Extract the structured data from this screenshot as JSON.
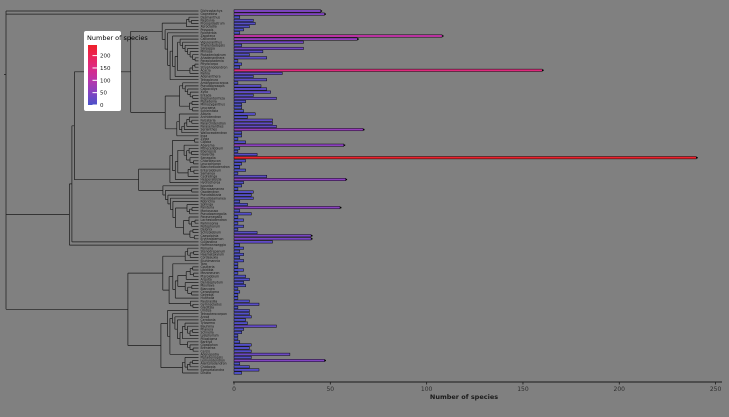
{
  "canvas": {
    "background": "#808080"
  },
  "chart_data": {
    "type": "bar",
    "orientation": "horizontal",
    "title": "",
    "xlabel": "Number of species",
    "legend_title": "Number of species",
    "legend_ticks": [
      200,
      150,
      100,
      50,
      0
    ],
    "x_ticks": [
      0,
      50,
      100,
      150,
      200,
      250
    ],
    "xlim": [
      0,
      250
    ],
    "grid": false,
    "tree": {
      "kind": "phylogenetic-cladogram",
      "tip_count": 117
    },
    "colors": {
      "background": "#808080",
      "bar_stroke": "#000000",
      "tree_line": "#1b1b1b",
      "axis_line": "#1a1a1a",
      "axis_text": "#2e2e2e",
      "label_text": "#141414",
      "legend_bg": "#ffffff",
      "value_color_stops": [
        [
          0,
          "#4a52c9"
        ],
        [
          50,
          "#8443c1"
        ],
        [
          100,
          "#b935ab"
        ],
        [
          150,
          "#dc2a86"
        ],
        [
          200,
          "#ec2355"
        ],
        [
          243,
          "#ee2129"
        ]
      ]
    },
    "categories": [
      "Dichrostachys",
      "Gagnebina",
      "Desmanthus",
      "Neptunia",
      "Prosopidastrum",
      "Xerocladia",
      "Prosopis",
      "Faidherbia",
      "Zapoteca",
      "Calliandra",
      "Viguieranthus",
      "Thailentadopsis",
      "Sanjappa",
      "Mimosa",
      "Piptadeniastrum",
      "Anadenanthera",
      "Parapiptadenia",
      "Pityrocarpa",
      "Stryphnodendron",
      "Acacia",
      "Parkia",
      "Adenanthera",
      "Tetrapleura",
      "Amblygonocarpus",
      "Pseudoprosopis",
      "Calpocalyx",
      "Xylia",
      "Entada",
      "Elephantorrhiza",
      "Piptadenia",
      "Mimozyganthus",
      "Leucaena",
      "Schleinitzia",
      "Albizia",
      "Archidendron",
      "Falcataria",
      "Pararchidendron",
      "Paraserianthes",
      "Serianthes",
      "Wallaceodendron",
      "Inga",
      "Zygia",
      "Cojoba",
      "Abarema",
      "Pithecellobium",
      "Ebenopsis",
      "Havardia",
      "Senegalia",
      "Chloroleucon",
      "Leucochloron",
      "Blanchetiodendron",
      "Enterolobium",
      "Samanea",
      "Cedrelinga",
      "Hesperalbizia",
      "Hydrochorea",
      "Jupunba",
      "Macrosamanea",
      "Osodendron",
      "Pseudalbizzia",
      "Pseudosamanea",
      "Robrichia",
      "Sphinga",
      "Painteria",
      "Mariosousa",
      "Pseudosenegalia",
      "Parasenegalia",
      "Lachesiodendron",
      "Parkinsonia",
      "Peltophorum",
      "Delonix",
      "Schizolobium",
      "Caesalpinia",
      "Erythrostemon",
      "Guilandina",
      "Hoffmannseggia",
      "Pomaria",
      "Stenodrepanum",
      "Haematoxylum",
      "Cordeauxia",
      "Stuhlmannia",
      "Tara",
      "Coulteria",
      "Libidibia",
      "Mezoneuron",
      "Pterolobium",
      "Arquita",
      "Denisophytum",
      "Moullava",
      "Biancaea",
      "Cenostigma",
      "Gelrebia",
      "Hultholia",
      "Paubrasilia",
      "Gymnocladus",
      "Gleditsia",
      "Umtiza",
      "Tetrapterocarpon",
      "Arcoa",
      "Ceratonia",
      "Tylosema",
      "Bauhinia",
      "Phanera",
      "Schnella",
      "Lysiphyllum",
      "Piliostigma",
      "Barklya",
      "Gigasiphon",
      "Brenierea",
      "Cercis",
      "Adenopodia",
      "Piptadeniopsis",
      "Lemurodendron",
      "Alantsilodendron",
      "Chidlowia",
      "Sympetalandra",
      "Dinizia"
    ],
    "values": [
      45,
      47,
      3,
      10,
      11,
      8,
      5,
      3,
      108,
      64,
      36,
      4,
      36,
      15,
      8,
      17,
      2,
      4,
      3,
      160,
      25,
      10,
      17,
      2,
      14,
      17,
      19,
      10,
      22,
      6,
      4,
      4,
      5,
      11,
      7,
      20,
      20,
      22,
      67,
      4,
      4,
      2,
      6,
      57,
      3,
      2,
      12,
      240,
      6,
      4,
      3,
      6,
      2,
      17,
      58,
      5,
      4,
      2,
      10,
      9,
      10,
      3,
      7,
      55,
      3,
      9,
      2,
      5,
      2,
      5,
      2,
      12,
      40,
      40,
      20,
      3,
      5,
      3,
      5,
      3,
      5,
      2,
      2,
      5,
      2,
      6,
      8,
      5,
      6,
      2,
      3,
      2,
      2,
      8,
      13,
      2,
      8,
      8,
      9,
      6,
      7,
      22,
      5,
      4,
      2,
      2,
      3,
      9,
      8,
      9,
      29,
      9,
      47,
      3,
      8,
      13,
      4
    ]
  }
}
